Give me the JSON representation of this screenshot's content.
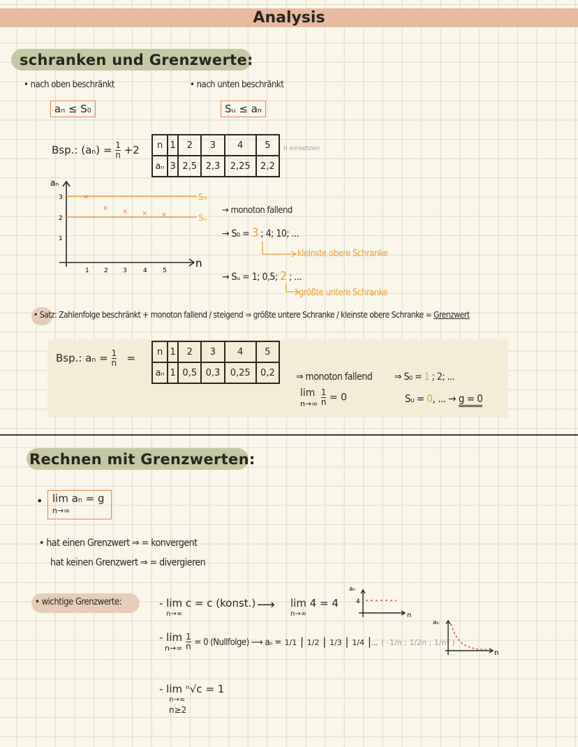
{
  "title": "Analysis",
  "section1": {
    "heading": "schranken und Grenzwerte:",
    "upper": {
      "bullet": "• nach oben beschränkt",
      "formula": "aₙ ≤ S₀"
    },
    "lower": {
      "bullet": "• nach unten beschränkt",
      "formula": "Sᵤ ≤ aₙ"
    },
    "example1": {
      "label": "Bsp.: (aₙ) =",
      "num": "1",
      "den": "n",
      "suffix": "+2",
      "table": {
        "header": [
          "n",
          "1",
          "2",
          "3",
          "4",
          "5"
        ],
        "row": [
          "aₙ",
          "3",
          "2,5",
          "2,3̄",
          "2,25",
          "2,2"
        ]
      },
      "note": "n einsetzen"
    },
    "plot": {
      "y_label": "aₙ",
      "x_label": "n",
      "y_ticks": [
        "3",
        "2",
        "1"
      ],
      "x_ticks": [
        "1",
        "2",
        "3",
        "4",
        "5"
      ],
      "upper_line": "S₀",
      "lower_line": "Sᵤ",
      "points": [
        [
          1,
          3
        ],
        [
          2,
          2.5
        ],
        [
          3,
          2.33
        ],
        [
          4,
          2.25
        ],
        [
          5,
          2.2
        ]
      ]
    },
    "notes": {
      "monoton": "→ monoton fallend",
      "so_prefix": "→ S₀ = ",
      "so_best": "3",
      "so_rest": " ; 4; 10; ...",
      "so_label": "kleinste obere Schranke",
      "su_prefix": "→ Sᵤ = 1; 0,5; ",
      "su_best": "2",
      "su_rest": " ; ...",
      "su_label": "größte untere Schranke"
    },
    "theorem": {
      "label": "Satz:",
      "text": "Zahlenfolge beschränkt + monoton fallend / steigend ⇒ größte untere Schranke / kleinste obere Schranke =",
      "term": "Grenzwert"
    },
    "example2": {
      "label": "Bsp.: aₙ =",
      "num": "1",
      "den": "n",
      "eq": "=",
      "table": {
        "header": [
          "n",
          "1",
          "2",
          "3",
          "4",
          "5"
        ],
        "row": [
          "aₙ",
          "1",
          "0,5",
          "0,3̄",
          "0,25",
          "0,2"
        ]
      },
      "monoton": "⇒ monoton fallend",
      "lim": "lim",
      "lim_sub": "n→∞",
      "lim_num": "1",
      "lim_den": "n",
      "lim_res": "= 0",
      "so_prefix": "⇒ S₀ = ",
      "so_best": "1",
      "so_rest": " ; 2; ...",
      "su_prefix": "Sᵤ = ",
      "su_best": "0",
      "su_rest": ", ...  →",
      "g": "g = 0"
    }
  },
  "section2": {
    "heading": "Rechnen mit Grenzwerten:",
    "def": {
      "lim": "lim aₙ = g",
      "sub": "n→∞"
    },
    "conv": "• hat einen Grenzwert ⇒ = konvergent",
    "div": "hat keinen Grenzwert ⇒ = divergieren",
    "important": "• wichtige Grenzwerte:",
    "r1": {
      "lim": "- lim c = c (konst.)",
      "sub": "n→∞",
      "arrow": "⟶",
      "ex": "lim 4 = 4",
      "ex_sub": "n→∞",
      "plot_y": "aₙ",
      "plot_tick": "4",
      "plot_x": "n"
    },
    "r2": {
      "lim": "- lim",
      "sub": "n→∞",
      "num": "1",
      "den": "n",
      "res": "= 0 (Nullfolge) ⟶ aₙ =",
      "seq": [
        "1/1",
        "1/2",
        "1/3",
        "1/4"
      ],
      "dots": "...",
      "others": "( -1/n ; 1/2n ; 1/n² )",
      "plot_y": "aₙ",
      "plot_x": "n"
    },
    "r3": {
      "lim": "- lim ⁿ√c = 1",
      "sub": "n→∞",
      "cond": "n≥2"
    }
  },
  "colors": {
    "header": "#e8bb9f",
    "highlight": "#c3c9a2",
    "accent": "#e4a33c",
    "box": "#e0865a",
    "marks": "#e07a5f"
  }
}
